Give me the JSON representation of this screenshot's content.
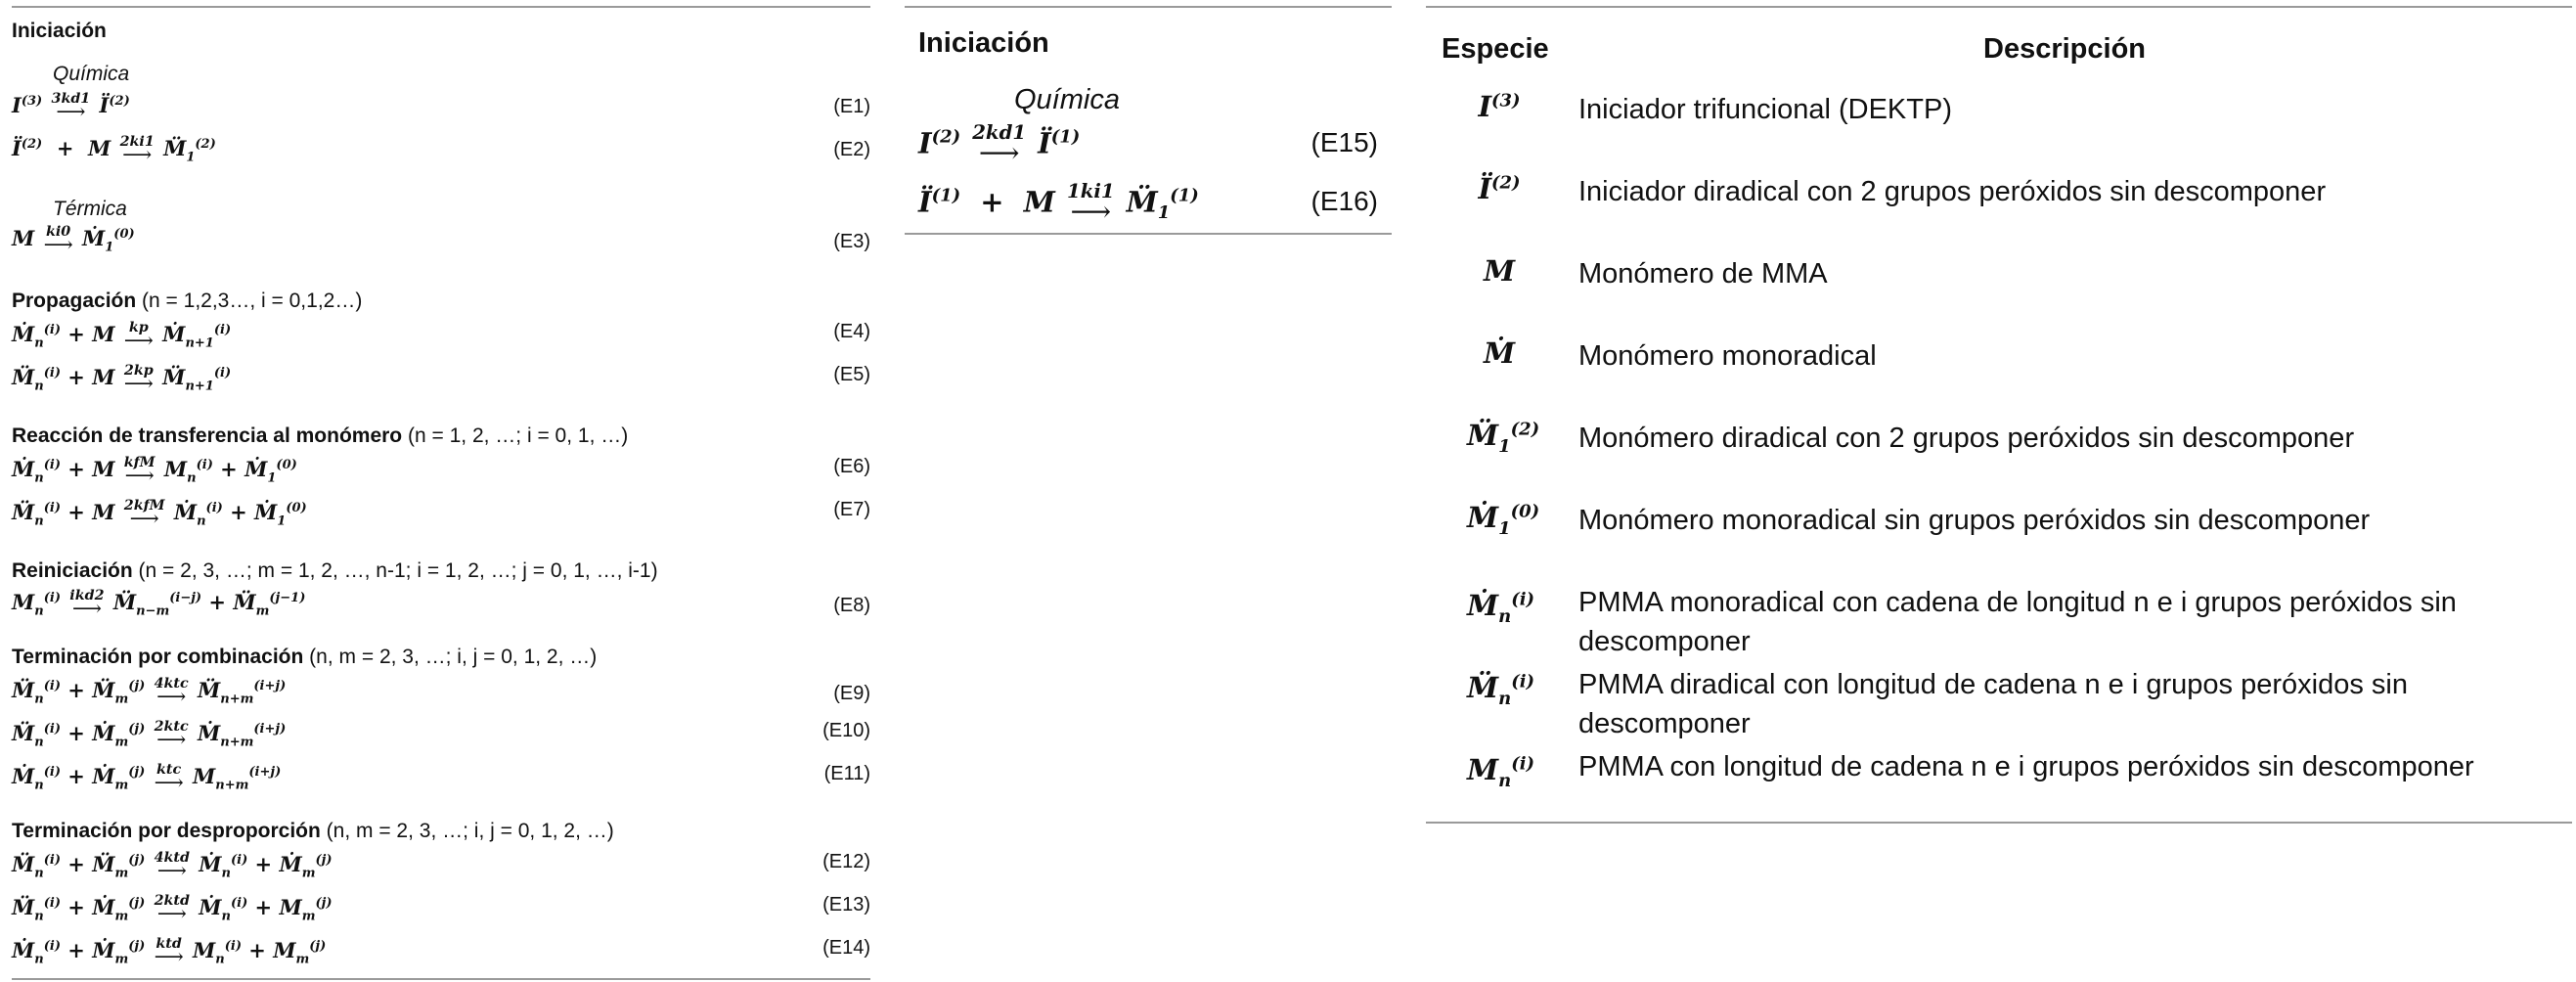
{
  "left": {
    "sections": [
      {
        "title": "Iniciación",
        "condition": ""
      },
      {
        "title": "Propagación",
        "condition": "(n = 1,2,3…, i = 0,1,2…)"
      },
      {
        "title": "Reacción de transferencia al monómero",
        "condition": "(n = 1, 2, …; i = 0, 1, …)"
      },
      {
        "title": "Reiniciación",
        "condition": "(n = 2, 3, …; m = 1, 2, …, n-1; i = 1, 2, …; j = 0, 1, …, i-1)"
      },
      {
        "title": "Terminación por combinación",
        "condition": "(n, m = 2, 3, …; i, j = 0, 1, 2, …)"
      },
      {
        "title": "Terminación por desproporción",
        "condition": "(n, m = 2, 3, …; i, j = 0, 1, 2, …)"
      }
    ],
    "subheads": [
      "Química",
      "Térmica"
    ],
    "equation_numbers": [
      "(E1)",
      "(E2)",
      "(E3)",
      "(E4)",
      "(E5)",
      "(E6)",
      "(E7)",
      "(E8)",
      "(E9)",
      "(E10)",
      "(E11)",
      "(E12)",
      "(E13)",
      "(E14)"
    ],
    "rate_constants": [
      "3kd1",
      "2ki1",
      "ki0",
      "kp",
      "2kp",
      "kfM",
      "2kfM",
      "ikd2",
      "4ktc",
      "2ktc",
      "ktc",
      "4ktd",
      "2ktd",
      "ktd"
    ]
  },
  "middle": {
    "title": "Iniciación",
    "subhead": "Química",
    "equation_numbers": [
      "(E15)",
      "(E16)"
    ],
    "rate_constants": [
      "2kd1",
      "1ki1"
    ]
  },
  "right": {
    "headers": {
      "species": "Especie",
      "description": "Descripción"
    },
    "rows": [
      {
        "description": "Iniciador trifuncional (DEKTP)"
      },
      {
        "description": "Iniciador diradical con 2 grupos peróxidos sin descomponer"
      },
      {
        "description": "Monómero de MMA"
      },
      {
        "description": "Monómero monoradical"
      },
      {
        "description": "Monómero diradical con 2 grupos peróxidos sin descomponer"
      },
      {
        "description": "Monómero monoradical sin grupos peróxidos sin descomponer"
      },
      {
        "description": "PMMA monoradical con cadena de longitud n e i grupos peróxidos sin descomponer"
      },
      {
        "description": "PMMA diradical con longitud de cadena n e i grupos peróxidos sin descomponer"
      },
      {
        "description": "PMMA con longitud de cadena n e i grupos peróxidos sin descomponer"
      }
    ]
  }
}
